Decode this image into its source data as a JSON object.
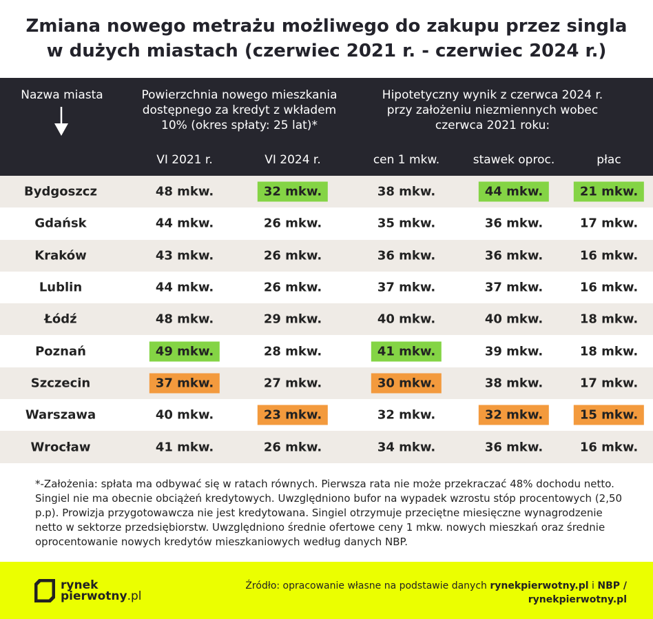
{
  "title": [
    "Zmiana nowego metrażu możliwego do zakupu przez singla",
    "w dużych miastach (czerwiec 2021 r. - czerwiec 2024 r.)"
  ],
  "header": {
    "city": "Nazwa miasta",
    "group1": [
      "Powierzchnia nowego mieszkania",
      "dostępnego za kredyt z wkładem",
      "10% (okres spłaty: 25 lat)*"
    ],
    "group2": [
      "Hipotetyczny wynik z czerwca 2024 r.",
      "przy założeniu niezmiennych wobec",
      "czerwca 2021 roku:"
    ]
  },
  "chart_data": {
    "type": "table",
    "columns": [
      "VI 2021 r.",
      "VI 2024 r.",
      "cen 1 mkw.",
      "stawek oproc.",
      "płac"
    ],
    "rows": [
      {
        "city": "Bydgoszcz",
        "values": [
          "48 mkw.",
          "32 mkw.",
          "38 mkw.",
          "44 mkw.",
          "21 mkw."
        ],
        "highlight": [
          null,
          "green",
          null,
          "green",
          "green"
        ]
      },
      {
        "city": "Gdańsk",
        "values": [
          "44 mkw.",
          "26 mkw.",
          "35 mkw.",
          "36 mkw.",
          "17 mkw."
        ],
        "highlight": [
          null,
          null,
          null,
          null,
          null
        ]
      },
      {
        "city": "Kraków",
        "values": [
          "43 mkw.",
          "26 mkw.",
          "36 mkw.",
          "36 mkw.",
          "16 mkw."
        ],
        "highlight": [
          null,
          null,
          null,
          null,
          null
        ]
      },
      {
        "city": "Lublin",
        "values": [
          "44 mkw.",
          "26 mkw.",
          "37 mkw.",
          "37 mkw.",
          "16 mkw."
        ],
        "highlight": [
          null,
          null,
          null,
          null,
          null
        ]
      },
      {
        "city": "Łódź",
        "values": [
          "48 mkw.",
          "29 mkw.",
          "40 mkw.",
          "40 mkw.",
          "18 mkw."
        ],
        "highlight": [
          null,
          null,
          null,
          null,
          null
        ]
      },
      {
        "city": "Poznań",
        "values": [
          "49 mkw.",
          "28 mkw.",
          "41 mkw.",
          "39 mkw.",
          "18 mkw."
        ],
        "highlight": [
          "green",
          null,
          "green",
          null,
          null
        ]
      },
      {
        "city": "Szczecin",
        "values": [
          "37 mkw.",
          "27 mkw.",
          "30 mkw.",
          "38 mkw.",
          "17 mkw."
        ],
        "highlight": [
          "orange",
          null,
          "orange",
          null,
          null
        ]
      },
      {
        "city": "Warszawa",
        "values": [
          "40 mkw.",
          "23 mkw.",
          "32 mkw.",
          "32 mkw.",
          "15 mkw."
        ],
        "highlight": [
          null,
          "orange",
          null,
          "orange",
          "orange"
        ]
      },
      {
        "city": "Wrocław",
        "values": [
          "41 mkw.",
          "26 mkw.",
          "34 mkw.",
          "36 mkw.",
          "16 mkw."
        ],
        "highlight": [
          null,
          null,
          null,
          null,
          null
        ]
      }
    ]
  },
  "note": "*-Założenia: spłata ma odbywać się w ratach równych. Pierwsza rata nie może przekraczać 48% dochodu netto. Singiel nie ma obecnie obciążeń kredytowych. Uwzględniono bufor na wypadek wzrostu stóp procentowych (2,50 p.p). Prowizja przygotowawcza nie jest kredytowana. Singiel otrzymuje przeciętne miesięczne wynagrodzenie netto w sektorze przedsiębiorstw. Uwzględniono średnie ofertowe ceny 1 mkw. nowych mieszkań oraz średnie oprocentowanie nowych kredytów mieszkaniowych według danych NBP.",
  "footer": {
    "logo": [
      "rynek",
      "pierwotny",
      ".pl"
    ],
    "source_prefix": "Źródło: opracowanie własne na podstawie danych ",
    "source_bold1": "rynekpierwotny.pl",
    "source_mid": " i ",
    "source_bold2": "NBP /",
    "source_line2": "rynekpierwotny.pl"
  },
  "colors": {
    "dark": "#26262e",
    "green": "#84d445",
    "orange": "#f39a3d",
    "yellow": "#ebff00"
  }
}
